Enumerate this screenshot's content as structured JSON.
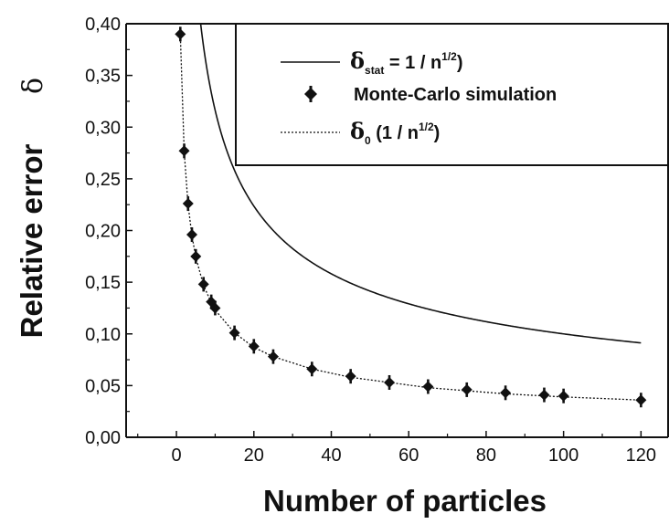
{
  "chart_data": {
    "type": "line",
    "xlabel": "Number of particles",
    "ylabel": "Relative error",
    "ylabel_symbol": "δ",
    "xlim": [
      -13,
      127
    ],
    "ylim": [
      0,
      0.4
    ],
    "x_ticks": [
      0,
      20,
      40,
      60,
      80,
      100,
      120
    ],
    "x_tick_labels": [
      "0",
      "20",
      "40",
      "60",
      "80",
      "100",
      "120"
    ],
    "y_ticks": [
      0,
      0.05,
      0.1,
      0.15,
      0.2,
      0.25,
      0.3,
      0.35,
      0.4
    ],
    "y_tick_labels": [
      "0,00",
      "0,05",
      "0,10",
      "0,15",
      "0,20",
      "0,25",
      "0,30",
      "0,35",
      "0,40"
    ],
    "legend_position": "top-right",
    "legend": {
      "stat_symbol": "δ",
      "stat_sub": "stat",
      "stat_mid": " = 1 / n",
      "stat_sup": "1/2",
      "stat_end": ")",
      "mc_label": "Monte-Carlo simulation",
      "fit_symbol": "δ",
      "fit_sub": "0",
      "fit_mid": " (1 / n",
      "fit_sup": "1/2",
      "fit_end": ")"
    },
    "series": [
      {
        "name": "δstat = 1 / n1/2)",
        "style": "solid",
        "formula": "1/sqrt(n)",
        "x": [
          6.25,
          7,
          8,
          10,
          12,
          15,
          20,
          25,
          30,
          35,
          40,
          50,
          60,
          70,
          80,
          90,
          100,
          110,
          120
        ],
        "y": [
          0.4,
          0.378,
          0.354,
          0.316,
          0.289,
          0.258,
          0.224,
          0.2,
          0.183,
          0.169,
          0.158,
          0.141,
          0.129,
          0.12,
          0.112,
          0.105,
          0.1,
          0.095,
          0.091
        ]
      },
      {
        "name": "Monte-Carlo simulation",
        "style": "markers",
        "x": [
          1,
          2,
          3,
          4,
          5,
          7,
          9,
          10,
          15,
          20,
          25,
          35,
          45,
          55,
          65,
          75,
          85,
          95,
          100,
          120
        ],
        "y": [
          0.39,
          0.277,
          0.226,
          0.196,
          0.175,
          0.148,
          0.131,
          0.125,
          0.101,
          0.088,
          0.078,
          0.066,
          0.059,
          0.053,
          0.049,
          0.046,
          0.043,
          0.041,
          0.04,
          0.036
        ]
      },
      {
        "name": "δ0 (1 / n1/2)",
        "style": "dotted",
        "x": [
          1,
          2,
          3,
          4,
          5,
          7,
          9,
          10,
          15,
          20,
          25,
          35,
          45,
          55,
          65,
          75,
          85,
          95,
          100,
          120
        ],
        "y": [
          0.39,
          0.276,
          0.225,
          0.195,
          0.174,
          0.147,
          0.13,
          0.123,
          0.101,
          0.087,
          0.078,
          0.066,
          0.058,
          0.053,
          0.048,
          0.045,
          0.042,
          0.04,
          0.039,
          0.036
        ]
      }
    ]
  }
}
